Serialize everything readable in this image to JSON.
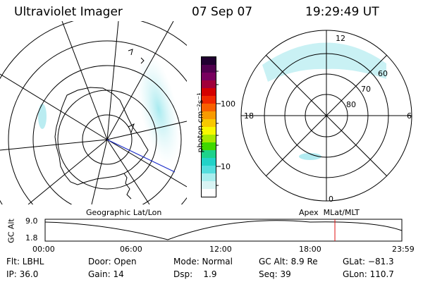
{
  "header": {
    "title": "Ultraviolet Imager",
    "date": "07 Sep 07",
    "time": "19:29:49 UT"
  },
  "colorbar": {
    "label": "photon cm⁻²s⁻¹",
    "ticks": [
      {
        "value": 100,
        "label": "100"
      },
      {
        "value": 10,
        "label": "10"
      }
    ],
    "colors": [
      "#ffffff",
      "#d8f4f4",
      "#a8eeee",
      "#55dede",
      "#22d2c8",
      "#1ed28a",
      "#40d800",
      "#a8e800",
      "#f8f800",
      "#f8c800",
      "#f89a00",
      "#f86000",
      "#f02800",
      "#d40000",
      "#a0003a",
      "#78005e",
      "#50004e",
      "#200030"
    ]
  },
  "map_left": {
    "caption": "Geographic Lat/Lon"
  },
  "map_right": {
    "caption": "Apex  MLat/MLT",
    "mlt_labels": {
      "top": "12",
      "bottom": "0",
      "left": "18",
      "right": "6"
    },
    "mlat_labels": [
      "60",
      "70",
      "80"
    ]
  },
  "altitude_plot": {
    "y_axis_label": "GC Alt",
    "y_ticks": [
      "9.0",
      "1.8"
    ],
    "x_ticks": [
      "00:00",
      "06:00",
      "12:00",
      "18:00",
      "23:59"
    ],
    "current_time_fraction": 0.8123
  },
  "footer": {
    "row1": {
      "filter": "Flt: LBHL",
      "door": "Door: Open",
      "mode": "Mode: Normal",
      "gc_alt": "GC Alt: 8.9 Re",
      "glat": "GLat: −81.3"
    },
    "row2": {
      "ip": "IP: 36.0",
      "gain": "Gain: 14",
      "dsp": "Dsp:    1.9",
      "seq": "Seq: 39",
      "glon": "GLon: 110.7"
    }
  }
}
